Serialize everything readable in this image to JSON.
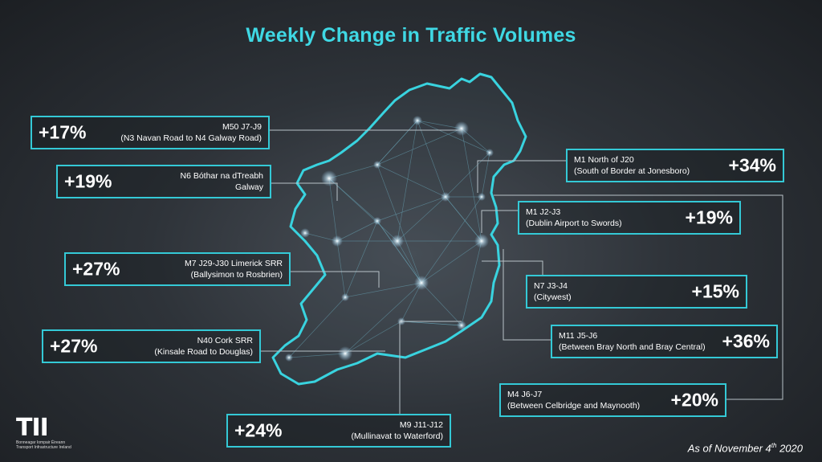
{
  "title": "Weekly Change in Traffic Volumes",
  "date_prefix": "As of November 4",
  "date_suffix": "th",
  "date_year": "2020",
  "logo": {
    "mark": "TII",
    "line1": "Bonneagar Iompair Éireann",
    "line2": "Transport Infrastructure Ireland"
  },
  "colors": {
    "accent": "#34c9d6",
    "title": "#3fd8e4",
    "background": "#2e3339"
  },
  "segments": [
    {
      "id": "m50",
      "change": "+17%",
      "road": "M50 J7-J9",
      "detail": "(N3 Navan Road to N4 Galway Road)"
    },
    {
      "id": "n6",
      "change": "+19%",
      "road": "N6 Bóthar na dTreabh",
      "detail": "Galway"
    },
    {
      "id": "m7",
      "change": "+27%",
      "road": "M7 J29-J30 Limerick SRR",
      "detail": "(Ballysimon to Rosbrien)"
    },
    {
      "id": "n40",
      "change": "+27%",
      "road": "N40 Cork SRR",
      "detail": "(Kinsale Road to Douglas)"
    },
    {
      "id": "m9",
      "change": "+24%",
      "road": "M9 J11-J12",
      "detail": "(Mullinavat to Waterford)"
    },
    {
      "id": "m1n",
      "change": "+34%",
      "road": "M1 North of J20",
      "detail": "(South of Border at Jonesboro)"
    },
    {
      "id": "m1a",
      "change": "+19%",
      "road": "M1 J2-J3",
      "detail": "(Dublin Airport to Swords)"
    },
    {
      "id": "n7",
      "change": "+15%",
      "road": "N7 J3-J4",
      "detail": "(Citywest)"
    },
    {
      "id": "m11",
      "change": "+36%",
      "road": "M11 J5-J6",
      "detail": "(Between Bray North and Bray Central)"
    },
    {
      "id": "m4",
      "change": "+20%",
      "road": "M4 J6-J7",
      "detail": "(Between Celbridge and Maynooth)"
    }
  ]
}
